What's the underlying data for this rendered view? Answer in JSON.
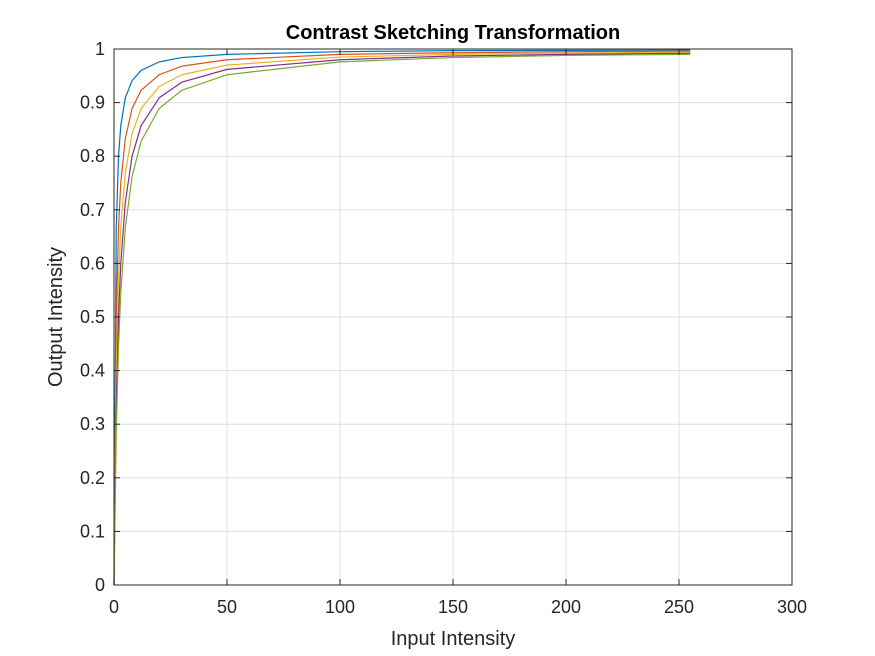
{
  "chart_data": {
    "type": "line",
    "title": "Contrast Sketching Transformation",
    "xlabel": "Input Intensity",
    "ylabel": "Output Intensity",
    "xlim": [
      0,
      300
    ],
    "ylim": [
      0,
      1
    ],
    "xticks": [
      0,
      50,
      100,
      150,
      200,
      250,
      300
    ],
    "yticks": [
      0,
      0.1,
      0.2,
      0.3,
      0.4,
      0.5,
      0.6,
      0.7,
      0.8,
      0.9,
      1
    ],
    "xtick_labels": [
      "0",
      "50",
      "100",
      "150",
      "200",
      "250",
      "300"
    ],
    "ytick_labels": [
      "0",
      "0.1",
      "0.2",
      "0.3",
      "0.4",
      "0.5",
      "0.6",
      "0.7",
      "0.8",
      "0.9",
      "1"
    ],
    "grid": true,
    "series": [
      {
        "color": "#0072BD",
        "x": [
          0,
          1,
          2,
          3,
          5,
          8,
          12,
          20,
          30,
          50,
          100,
          150,
          200,
          255
        ],
        "y": [
          0,
          0.667,
          0.8,
          0.857,
          0.909,
          0.941,
          0.96,
          0.976,
          0.984,
          0.99,
          0.995,
          0.997,
          0.9975,
          0.998
        ]
      },
      {
        "color": "#D95319",
        "x": [
          0,
          1,
          2,
          3,
          5,
          8,
          12,
          20,
          30,
          50,
          100,
          150,
          200,
          255
        ],
        "y": [
          0,
          0.5,
          0.667,
          0.75,
          0.833,
          0.889,
          0.923,
          0.952,
          0.968,
          0.98,
          0.99,
          0.993,
          0.995,
          0.996
        ]
      },
      {
        "color": "#EDB120",
        "x": [
          0,
          1,
          2,
          3,
          5,
          8,
          12,
          20,
          30,
          50,
          100,
          150,
          200,
          255
        ],
        "y": [
          0,
          0.4,
          0.571,
          0.667,
          0.769,
          0.842,
          0.889,
          0.93,
          0.952,
          0.97,
          0.985,
          0.99,
          0.9925,
          0.994
        ]
      },
      {
        "color": "#7E2F8E",
        "x": [
          0,
          1,
          2,
          3,
          5,
          8,
          12,
          20,
          30,
          50,
          100,
          150,
          200,
          255
        ],
        "y": [
          0,
          0.333,
          0.5,
          0.6,
          0.714,
          0.8,
          0.857,
          0.909,
          0.938,
          0.962,
          0.98,
          0.987,
          0.99,
          0.992
        ]
      },
      {
        "color": "#77AC30",
        "x": [
          0,
          1,
          2,
          3,
          5,
          8,
          12,
          20,
          30,
          50,
          100,
          150,
          200,
          255
        ],
        "y": [
          0,
          0.286,
          0.444,
          0.545,
          0.667,
          0.762,
          0.828,
          0.889,
          0.923,
          0.952,
          0.976,
          0.984,
          0.988,
          0.99
        ]
      }
    ]
  }
}
